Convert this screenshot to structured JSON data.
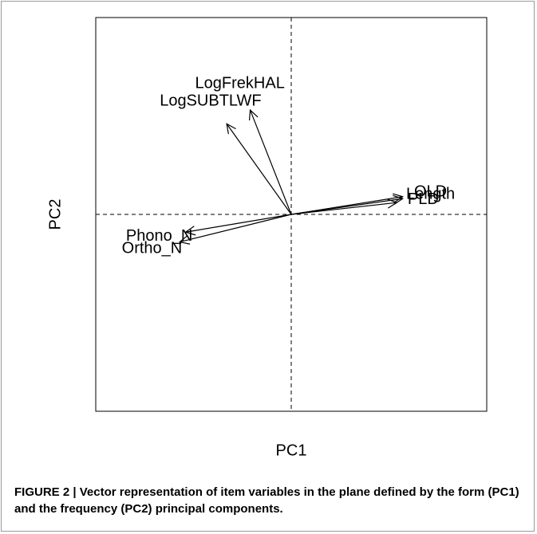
{
  "chart_data": {
    "type": "vector",
    "x_label": "PC1",
    "y_label": "PC2",
    "xlim": [
      -1,
      1
    ],
    "ylim": [
      -1,
      1
    ],
    "vectors": [
      {
        "name": "LogFrekHAL",
        "x": -0.21,
        "y": 0.53
      },
      {
        "name": "LogSUBTLWF",
        "x": -0.33,
        "y": 0.46
      },
      {
        "name": "Length",
        "x": 0.57,
        "y": 0.08
      },
      {
        "name": "OLD",
        "x": 0.57,
        "y": 0.09
      },
      {
        "name": "PLD",
        "x": 0.54,
        "y": 0.06
      },
      {
        "name": "Phono_N",
        "x": -0.54,
        "y": -0.09
      },
      {
        "name": "Ortho_N",
        "x": -0.57,
        "y": -0.14
      }
    ],
    "caption": "FIGURE 2 | Vector representation of item variables in the plane defined by the form (PC1) and the frequency (PC2) principal components."
  }
}
